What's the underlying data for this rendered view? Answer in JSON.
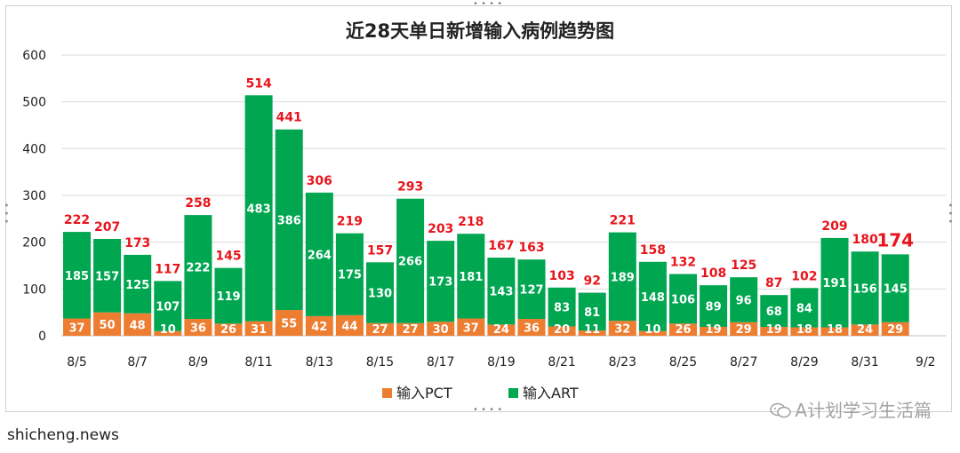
{
  "chart_data": {
    "type": "bar",
    "title": "近28天单日新增输入病例趋势图",
    "categories": [
      "8/5",
      "8/6",
      "8/7",
      "8/8",
      "8/9",
      "8/10",
      "8/11",
      "8/12",
      "8/13",
      "8/14",
      "8/15",
      "8/16",
      "8/17",
      "8/18",
      "8/19",
      "8/20",
      "8/21",
      "8/22",
      "8/23",
      "8/24",
      "8/25",
      "8/26",
      "8/27",
      "8/28",
      "8/29",
      "8/30",
      "8/31",
      "9/1"
    ],
    "x_tick_labels": [
      "8/5",
      "8/7",
      "8/9",
      "8/11",
      "8/13",
      "8/15",
      "8/17",
      "8/19",
      "8/21",
      "8/23",
      "8/25",
      "8/27",
      "8/29",
      "8/31",
      "9/2"
    ],
    "series": [
      {
        "name": "输入PCT",
        "color": "#ed7d31",
        "values": [
          37,
          50,
          48,
          10,
          36,
          26,
          31,
          55,
          42,
          44,
          27,
          27,
          30,
          37,
          24,
          36,
          20,
          11,
          32,
          10,
          26,
          19,
          29,
          19,
          18,
          18,
          24,
          29
        ]
      },
      {
        "name": "输入ART",
        "color": "#00a650",
        "values": [
          185,
          157,
          125,
          107,
          222,
          119,
          483,
          386,
          264,
          175,
          130,
          266,
          173,
          181,
          143,
          127,
          83,
          81,
          189,
          148,
          106,
          89,
          96,
          68,
          84,
          191,
          156,
          145
        ]
      }
    ],
    "totals": [
      222,
      207,
      173,
      117,
      258,
      145,
      514,
      441,
      306,
      219,
      157,
      293,
      203,
      218,
      167,
      163,
      103,
      92,
      221,
      158,
      132,
      108,
      125,
      87,
      102,
      209,
      180,
      174
    ],
    "stacked": true,
    "ylim": [
      0,
      600
    ],
    "yticks": [
      0,
      100,
      200,
      300,
      400,
      500,
      600
    ],
    "grid": true,
    "legend_position": "bottom",
    "total_label_color": "#e8141b"
  },
  "watermark": "A计划学习生活篇",
  "credit": "shicheng.news"
}
